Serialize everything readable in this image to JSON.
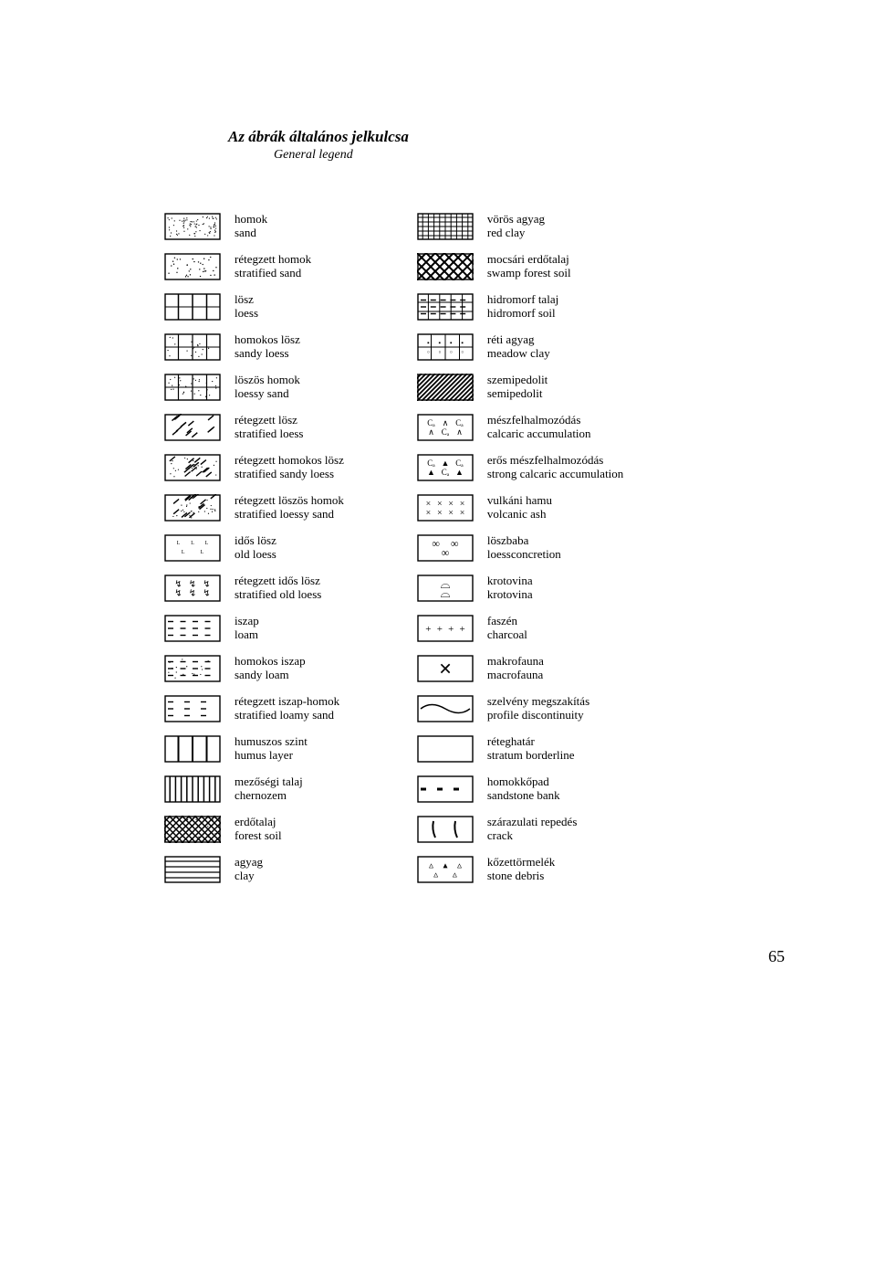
{
  "title": {
    "hu": "Az ábrák általános jelkulcsa",
    "en": "General legend"
  },
  "page_number": "65",
  "swatch": {
    "w": 62,
    "h": 30,
    "stroke": "#000000",
    "stroke_w": 1.4
  },
  "left": [
    {
      "pat": "sand",
      "hu": "homok",
      "en": "sand"
    },
    {
      "pat": "strat-sand",
      "hu": "rétegzett homok",
      "en": "stratified sand"
    },
    {
      "pat": "loess",
      "hu": "lösz",
      "en": "loess"
    },
    {
      "pat": "sandy-loess",
      "hu": "homokos lösz",
      "en": "sandy loess"
    },
    {
      "pat": "loessy-sand",
      "hu": "löszös homok",
      "en": "loessy sand"
    },
    {
      "pat": "strat-loess",
      "hu": "rétegzett lösz",
      "en": "stratified loess"
    },
    {
      "pat": "strat-sandy-loess",
      "hu": "rétegzett homokos lösz",
      "en": "stratified sandy loess"
    },
    {
      "pat": "strat-loessy-sand",
      "hu": "rétegzett löszös homok",
      "en": "stratified loessy sand"
    },
    {
      "pat": "old-loess",
      "hu": "idős lösz",
      "en": "old loess"
    },
    {
      "pat": "strat-old-loess",
      "hu": "rétegzett idős lösz",
      "en": "stratified old loess"
    },
    {
      "pat": "loam",
      "hu": "iszap",
      "en": "loam"
    },
    {
      "pat": "sandy-loam",
      "hu": "homokos iszap",
      "en": "sandy loam"
    },
    {
      "pat": "strat-loamy-sand",
      "hu": "rétegzett iszap-homok",
      "en": "stratified loamy sand"
    },
    {
      "pat": "humus",
      "hu": "humuszos szint",
      "en": "humus layer"
    },
    {
      "pat": "chernozem",
      "hu": "mezőségi talaj",
      "en": "chernozem"
    },
    {
      "pat": "forest-soil",
      "hu": "erdőtalaj",
      "en": "forest soil"
    },
    {
      "pat": "clay",
      "hu": "agyag",
      "en": "clay"
    }
  ],
  "right": [
    {
      "pat": "red-clay",
      "hu": "vörös agyag",
      "en": "red clay"
    },
    {
      "pat": "swamp-forest",
      "hu": "mocsári erdőtalaj",
      "en": "swamp forest soil"
    },
    {
      "pat": "hidromorf",
      "hu": "hidromorf talaj",
      "en": "hidromorf soil"
    },
    {
      "pat": "meadow-clay",
      "hu": "réti agyag",
      "en": "meadow clay"
    },
    {
      "pat": "semipedolit",
      "hu": "szemipedolit",
      "en": "semipedolit"
    },
    {
      "pat": "calcaric",
      "hu": "mészfelhalmozódás",
      "en": "calcaric accumulation"
    },
    {
      "pat": "strong-calcaric",
      "hu": "erős mészfelhalmozódás",
      "en": "strong calcaric accumulation"
    },
    {
      "pat": "volcanic-ash",
      "hu": "vulkáni hamu",
      "en": "volcanic ash"
    },
    {
      "pat": "loess-concretion",
      "hu": "löszbaba",
      "en": "loessconcretion"
    },
    {
      "pat": "krotovina",
      "hu": "krotovina",
      "en": "krotovina"
    },
    {
      "pat": "charcoal",
      "hu": "faszén",
      "en": "charcoal"
    },
    {
      "pat": "macrofauna",
      "hu": "makrofauna",
      "en": "macrofauna"
    },
    {
      "pat": "discontinuity",
      "hu": "szelvény megszakítás",
      "en": "profile discontinuity"
    },
    {
      "pat": "stratum-border",
      "hu": "réteghatár",
      "en": "stratum borderline"
    },
    {
      "pat": "sandstone-bank",
      "hu": "homokkőpad",
      "en": "sandstone bank"
    },
    {
      "pat": "crack",
      "hu": "szárazulati repedés",
      "en": "crack"
    },
    {
      "pat": "stone-debris",
      "hu": "kőzettörmelék",
      "en": "stone debris"
    }
  ]
}
